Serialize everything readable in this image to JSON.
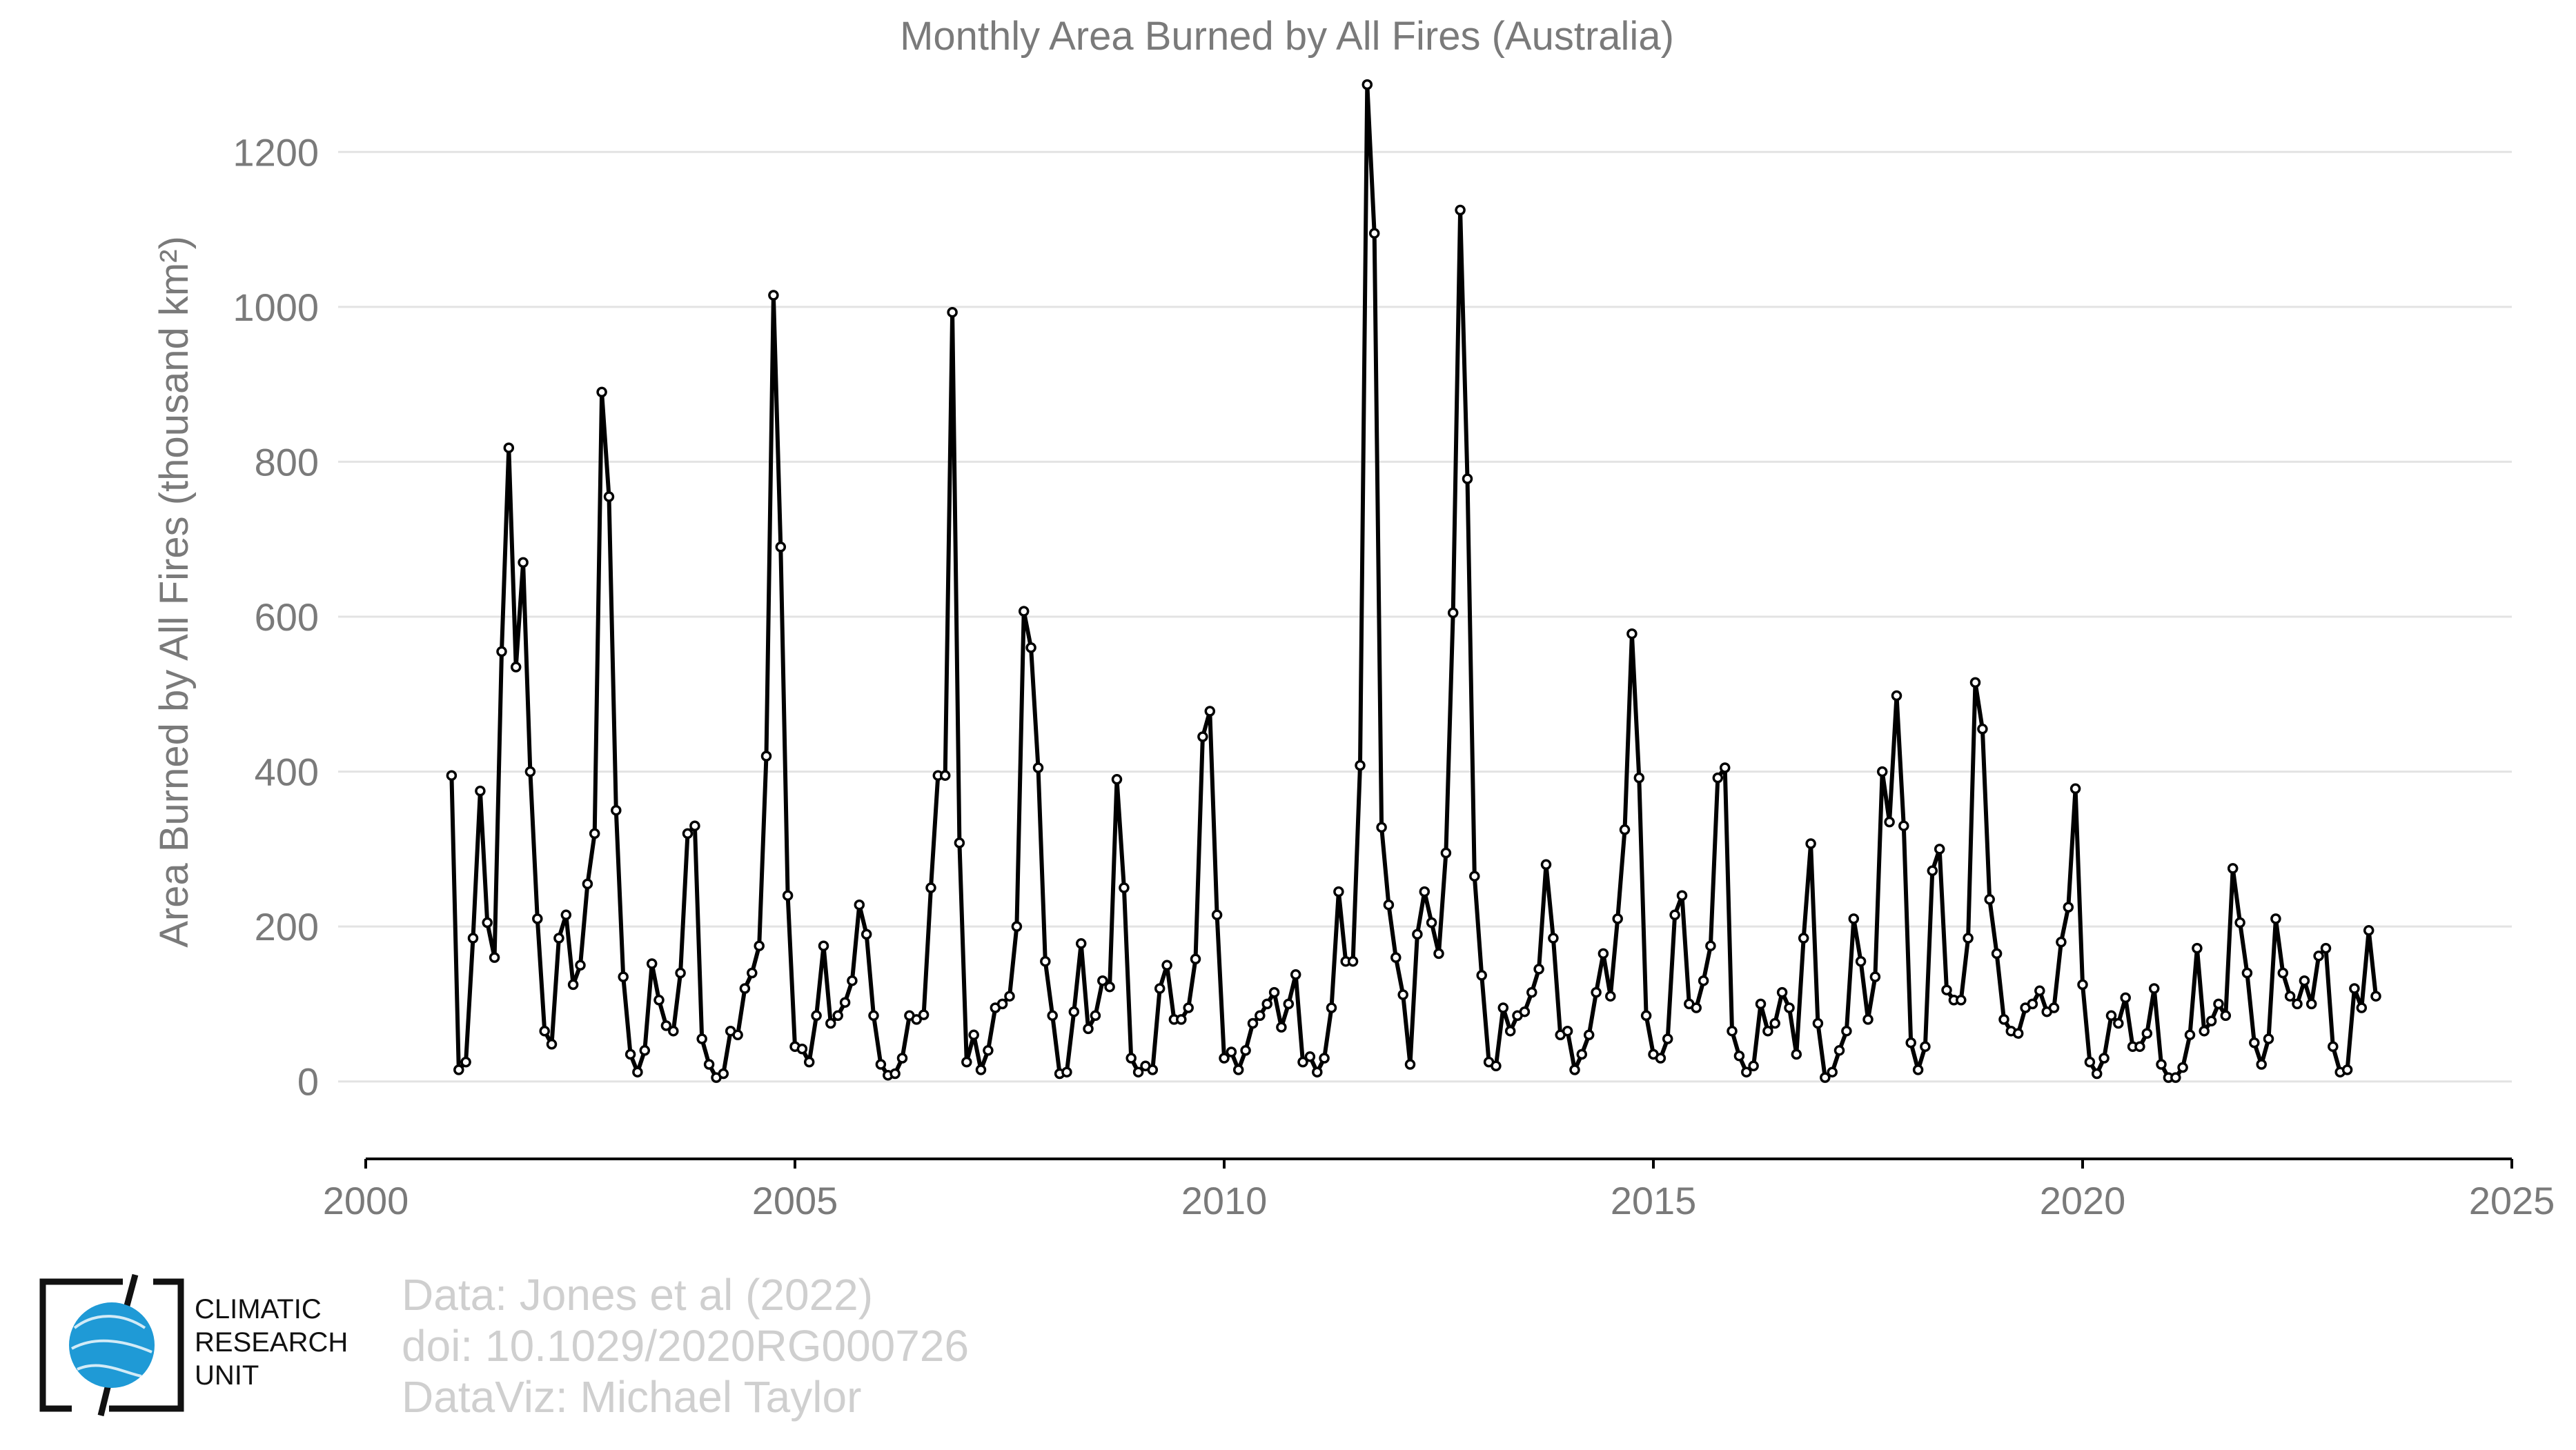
{
  "chart_data": {
    "type": "line",
    "title": "Monthly Area Burned by All Fires (Australia)",
    "ylabel": "Area Burned by All Fires (thousand km²)",
    "xlabel": "",
    "xlim": [
      2000,
      2025
    ],
    "ylim": [
      -100,
      1300
    ],
    "x_ticks": [
      2000,
      2005,
      2010,
      2015,
      2020,
      2025
    ],
    "y_ticks": [
      0,
      200,
      400,
      600,
      800,
      1000,
      1200
    ],
    "grid": "horizontal",
    "line_color": "#000000",
    "marker": "open-circle",
    "start": "2001-01",
    "frequency": "monthly",
    "values": [
      395,
      15,
      25,
      185,
      375,
      205,
      160,
      555,
      818,
      535,
      670,
      400,
      210,
      65,
      48,
      185,
      215,
      125,
      150,
      255,
      320,
      890,
      755,
      350,
      135,
      35,
      12,
      40,
      152,
      105,
      72,
      65,
      140,
      320,
      330,
      55,
      22,
      5,
      10,
      65,
      60,
      120,
      140,
      175,
      420,
      1015,
      690,
      240,
      45,
      42,
      25,
      85,
      175,
      75,
      85,
      102,
      130,
      228,
      190,
      85,
      22,
      8,
      10,
      30,
      85,
      80,
      86,
      250,
      395,
      395,
      993,
      308,
      25,
      60,
      15,
      40,
      95,
      100,
      110,
      200,
      607,
      560,
      405,
      155,
      85,
      10,
      12,
      90,
      178,
      68,
      85,
      130,
      122,
      390,
      250,
      30,
      12,
      20,
      15,
      120,
      150,
      80,
      80,
      95,
      158,
      445,
      478,
      215,
      30,
      38,
      15,
      40,
      75,
      85,
      100,
      115,
      70,
      100,
      138,
      25,
      32,
      12,
      30,
      95,
      245,
      155,
      155,
      408,
      1287,
      1095,
      328,
      228,
      160,
      112,
      22,
      190,
      245,
      205,
      165,
      295,
      605,
      1125,
      778,
      265,
      137,
      25,
      20,
      95,
      65,
      85,
      90,
      115,
      145,
      280,
      185,
      60,
      65,
      15,
      35,
      60,
      115,
      165,
      110,
      210,
      325,
      578,
      392,
      85,
      35,
      30,
      55,
      215,
      240,
      100,
      95,
      130,
      175,
      392,
      405,
      65,
      33,
      12,
      20,
      100,
      65,
      75,
      115,
      95,
      35,
      185,
      307,
      75,
      5,
      12,
      40,
      65,
      210,
      155,
      80,
      135,
      400,
      335,
      498,
      330,
      50,
      15,
      45,
      272,
      300,
      118,
      105,
      105,
      185,
      515,
      455,
      235,
      165,
      80,
      65,
      62,
      95,
      100,
      117,
      90,
      95,
      180,
      225,
      378,
      125,
      25,
      10,
      30,
      85,
      75,
      108,
      45,
      45,
      62,
      120,
      22,
      5,
      5,
      18,
      60,
      172,
      65,
      78,
      100,
      85,
      275,
      205,
      140,
      50,
      22,
      55,
      210,
      140,
      110,
      100,
      130,
      100,
      162,
      172,
      45,
      12,
      15,
      120,
      95,
      195,
      110
    ]
  },
  "logo": {
    "line1": "CLIMATIC",
    "line2": "RESEARCH",
    "line3": "UNIT",
    "globe_color": "#1f9ad6"
  },
  "credits": {
    "line1": "Data: Jones et al (2022)",
    "line2": "doi: 10.1029/2020RG000726",
    "line3": "DataViz: Michael Taylor"
  }
}
